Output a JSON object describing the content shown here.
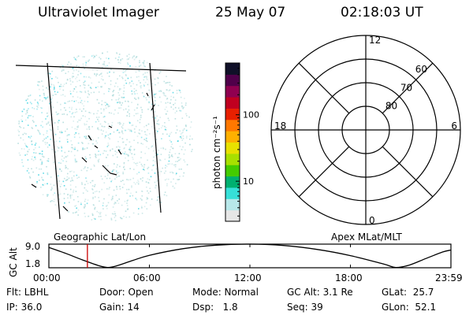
{
  "header": {
    "instrument": "Ultraviolet Imager",
    "date": "25 May 07",
    "time": "02:18:03 UT"
  },
  "colorbar": {
    "unit_label": "photon cm⁻²s⁻¹",
    "ticks": [
      {
        "label": "100",
        "value": 100
      },
      {
        "label": "10",
        "value": 10
      }
    ],
    "range": [
      2.5,
      600
    ],
    "scale": "log",
    "colors": [
      "#e6e6e6",
      "#b8e8ea",
      "#36e0d8",
      "#00b070",
      "#44cc00",
      "#a8e000",
      "#e8e000",
      "#ffb000",
      "#ff7800",
      "#e82000",
      "#c00020",
      "#900050",
      "#50004a",
      "#101028"
    ]
  },
  "geo_panel": {
    "label": "Geographic Lat/Lon",
    "dot_color": "#a8d8d8",
    "bright_color": "#30d0e0"
  },
  "polar_panel": {
    "label": "Apex MLat/MLT",
    "mlt_labels": [
      {
        "text": "12",
        "mlt": 12
      },
      {
        "text": "18",
        "mlt": 18
      },
      {
        "text": "6",
        "mlt": 6
      },
      {
        "text": "0",
        "mlt": 0
      }
    ],
    "lat_labels": [
      {
        "text": "60",
        "lat": 60
      },
      {
        "text": "70",
        "lat": 70
      },
      {
        "text": "80",
        "lat": 80
      }
    ],
    "lat_range": [
      50,
      90
    ]
  },
  "chart_data": {
    "type": "line",
    "ylabel": "GC Alt",
    "yticks": [
      "9.0",
      "1.8"
    ],
    "ylim": [
      1.8,
      9.0
    ],
    "xticks": [
      "00:00",
      "06:00",
      "12:00",
      "18:00",
      "23:59"
    ],
    "xlim": [
      0,
      24
    ],
    "x": [
      0,
      1,
      2,
      3,
      3.5,
      4,
      5,
      6,
      8,
      10,
      12,
      14,
      16,
      18,
      20,
      20.7,
      21.5,
      22.5,
      23.5,
      24
    ],
    "y": [
      8.0,
      6.2,
      4.2,
      2.4,
      1.9,
      2.3,
      4.0,
      5.6,
      7.6,
      8.7,
      9.0,
      8.6,
      7.4,
      5.5,
      2.9,
      1.9,
      2.6,
      4.6,
      6.6,
      7.2
    ],
    "marker_time": 2.3,
    "marker_color": "#cc0000"
  },
  "status": {
    "flt": "Flt: LBHL",
    "ip": "IP: 36.0",
    "door": "Door: Open",
    "gain": "Gain: 14",
    "mode": "Mode: Normal",
    "dsp": "Dsp:   1.8",
    "gcalt": "GC Alt: 3.1 Re",
    "seq": "Seq: 39",
    "glat": "GLat:  25.7",
    "glon": "GLon:  52.1"
  }
}
